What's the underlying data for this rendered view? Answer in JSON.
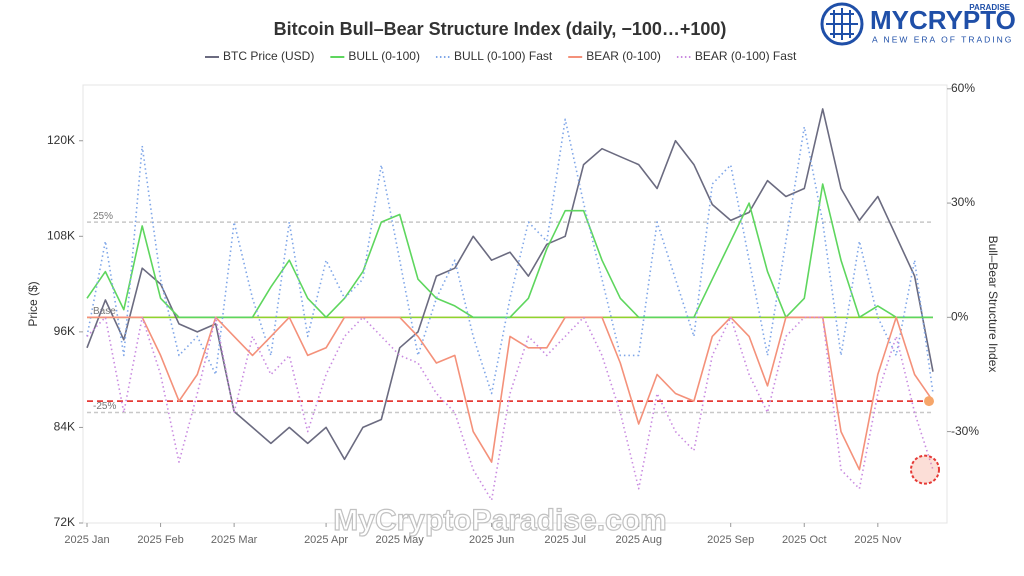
{
  "chart_data": {
    "type": "line",
    "title": "Bitcoin Bull–Bear Structure Index (daily, −100…+100)",
    "y_label": "Price ($)",
    "y2_label": "Bull–Bear Structure Index",
    "legend": "top",
    "categories": [
      "2025 Jan",
      null,
      null,
      null,
      "2025 Feb",
      null,
      null,
      null,
      "2025 Mar",
      null,
      null,
      null,
      null,
      "2025 Apr",
      null,
      null,
      null,
      "2025 May",
      null,
      null,
      null,
      null,
      "2025 Jun",
      null,
      null,
      null,
      "2025 Jul",
      null,
      null,
      null,
      "2025 Aug",
      null,
      null,
      null,
      null,
      "2025 Sep",
      null,
      null,
      null,
      "2025 Oct",
      null,
      null,
      null,
      "2025 Nov",
      null,
      null,
      null
    ],
    "ylim": [
      72000,
      127000
    ],
    "yticks": [
      {
        "value": 72000,
        "label": "72K"
      },
      {
        "value": 84000,
        "label": "84K"
      },
      {
        "value": 96000,
        "label": "96K"
      },
      {
        "value": 108000,
        "label": "108K"
      },
      {
        "value": 120000,
        "label": "120K"
      }
    ],
    "y2lim": [
      -54,
      61
    ],
    "y2ticks": [
      {
        "value": -30,
        "label": "-30%"
      },
      {
        "value": 0,
        "label": "0%"
      },
      {
        "value": 30,
        "label": "30%"
      },
      {
        "value": 60,
        "label": "60%"
      }
    ],
    "hlines": [
      {
        "value": 25,
        "label": "25%",
        "color": "#c8c8c8",
        "axis": "y2"
      },
      {
        "value": 0,
        "label": "Base",
        "color": "#f4917a",
        "axis": "y2"
      },
      {
        "value": 0,
        "color": "#8cd62e",
        "axis": "y2"
      },
      {
        "value": -25,
        "label": "-25%",
        "color": "#c8c8c8",
        "axis": "y2"
      },
      {
        "value": -22,
        "color": "#e53935",
        "axis": "y2"
      }
    ],
    "series": [
      {
        "name": "BTC Price (USD)",
        "color": "#6b6b80",
        "style": "solid",
        "values": [
          94000,
          100000,
          95000,
          104000,
          102000,
          97000,
          96000,
          97000,
          86000,
          84000,
          82000,
          84000,
          82000,
          84000,
          80000,
          84000,
          85000,
          94000,
          96000,
          103000,
          104000,
          108000,
          105000,
          106000,
          103000,
          107000,
          108000,
          117000,
          119000,
          118000,
          117000,
          114000,
          120000,
          117000,
          112000,
          110000,
          111000,
          115000,
          113000,
          114000,
          124000,
          114000,
          110000,
          113000,
          108000,
          103000,
          91000
        ]
      },
      {
        "name": "BULL (0-100)",
        "color": "#5ed65e",
        "style": "solid",
        "axis": "y2",
        "values": [
          5,
          12,
          2,
          24,
          5,
          0,
          0,
          0,
          0,
          0,
          8,
          15,
          5,
          0,
          5,
          12,
          25,
          27,
          10,
          5,
          3,
          0,
          0,
          0,
          5,
          18,
          28,
          28,
          15,
          5,
          0,
          0,
          0,
          0,
          10,
          20,
          30,
          12,
          0,
          5,
          35,
          15,
          0,
          3,
          0,
          0,
          0
        ]
      },
      {
        "name": "BULL (0-100) Fast",
        "color": "#7fa6e8",
        "style": "dotted",
        "axis": "y2",
        "values": [
          -5,
          20,
          -10,
          45,
          10,
          -10,
          -5,
          -15,
          25,
          5,
          -10,
          25,
          -5,
          15,
          5,
          10,
          40,
          15,
          -10,
          5,
          15,
          -5,
          -20,
          5,
          25,
          20,
          52,
          30,
          10,
          -10,
          -10,
          25,
          10,
          -5,
          35,
          40,
          15,
          -10,
          20,
          50,
          25,
          -10,
          20,
          0,
          -10,
          15,
          -20
        ]
      },
      {
        "name": "BEAR (0-100)",
        "color": "#f4917a",
        "style": "solid",
        "axis": "y2",
        "values": [
          0,
          0,
          0,
          0,
          -10,
          -22,
          -15,
          0,
          -5,
          -10,
          -5,
          0,
          -10,
          -8,
          0,
          0,
          0,
          0,
          -5,
          -12,
          -10,
          -30,
          -38,
          -5,
          -8,
          -8,
          0,
          0,
          0,
          -12,
          -28,
          -15,
          -20,
          -22,
          -5,
          0,
          -5,
          -18,
          0,
          0,
          0,
          -30,
          -40,
          -15,
          0,
          -15,
          -22
        ]
      },
      {
        "name": "BEAR (0-100) Fast",
        "color": "#c98ae0",
        "style": "dotted",
        "axis": "y2",
        "values": [
          -5,
          0,
          -25,
          0,
          -15,
          -38,
          -20,
          0,
          -25,
          -5,
          -15,
          -10,
          -30,
          -15,
          -5,
          0,
          -5,
          -10,
          -12,
          -20,
          -25,
          -40,
          -48,
          -20,
          -5,
          -10,
          -5,
          0,
          -10,
          -25,
          -45,
          -20,
          -30,
          -35,
          -10,
          0,
          -15,
          -25,
          -5,
          0,
          0,
          -40,
          -45,
          -20,
          -5,
          -25,
          -40
        ]
      }
    ]
  },
  "watermark": "MyCryptoParadise.com",
  "logo": {
    "name": "MYCRYPTO",
    "badge": "PARADISE",
    "tagline": "A NEW ERA OF TRADING"
  }
}
